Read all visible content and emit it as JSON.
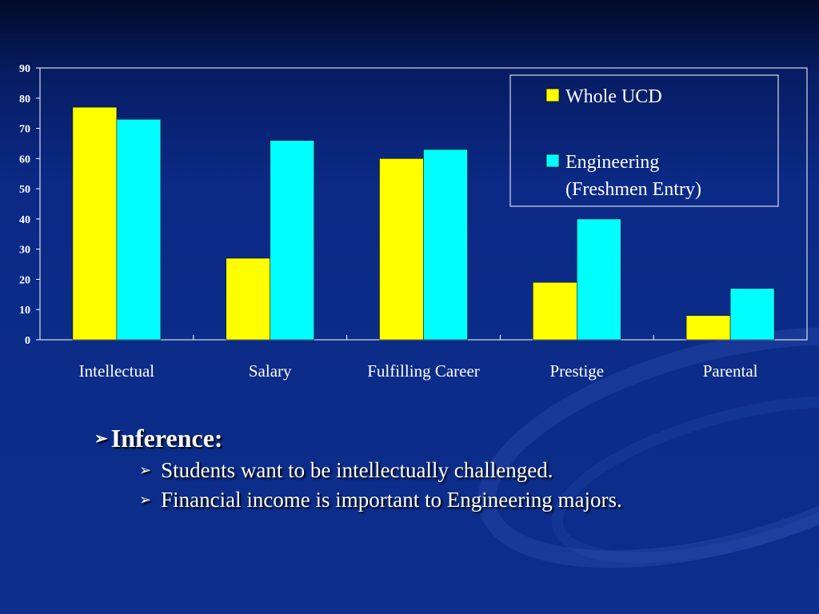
{
  "chart_data": {
    "type": "bar",
    "categories": [
      "Intellectual",
      "Salary",
      "Fulfilling Career",
      "Prestige",
      "Parental"
    ],
    "series": [
      {
        "name": "Whole UCD",
        "values": [
          77,
          27,
          60,
          19,
          8
        ],
        "color": "#ffff00"
      },
      {
        "name": "Engineering (Freshmen Entry)",
        "values": [
          73,
          66,
          63,
          40,
          17
        ],
        "color": "#00ffff"
      }
    ],
    "legend_lines": [
      [
        "Whole UCD"
      ],
      [
        "Engineering",
        "(Freshmen Entry)"
      ]
    ],
    "ylim": [
      0,
      90
    ],
    "yticks": [
      0,
      10,
      20,
      30,
      40,
      50,
      60,
      70,
      80,
      90
    ],
    "grid": false,
    "legend_position": "top-right",
    "title": "",
    "xlabel": "",
    "ylabel": ""
  },
  "inference": {
    "heading": "Inference:",
    "points": [
      "Students want to be intellectually challenged.",
      "Financial income is important to Engineering majors."
    ]
  },
  "icons": {
    "bullet": "arrowhead-bullet-icon"
  }
}
